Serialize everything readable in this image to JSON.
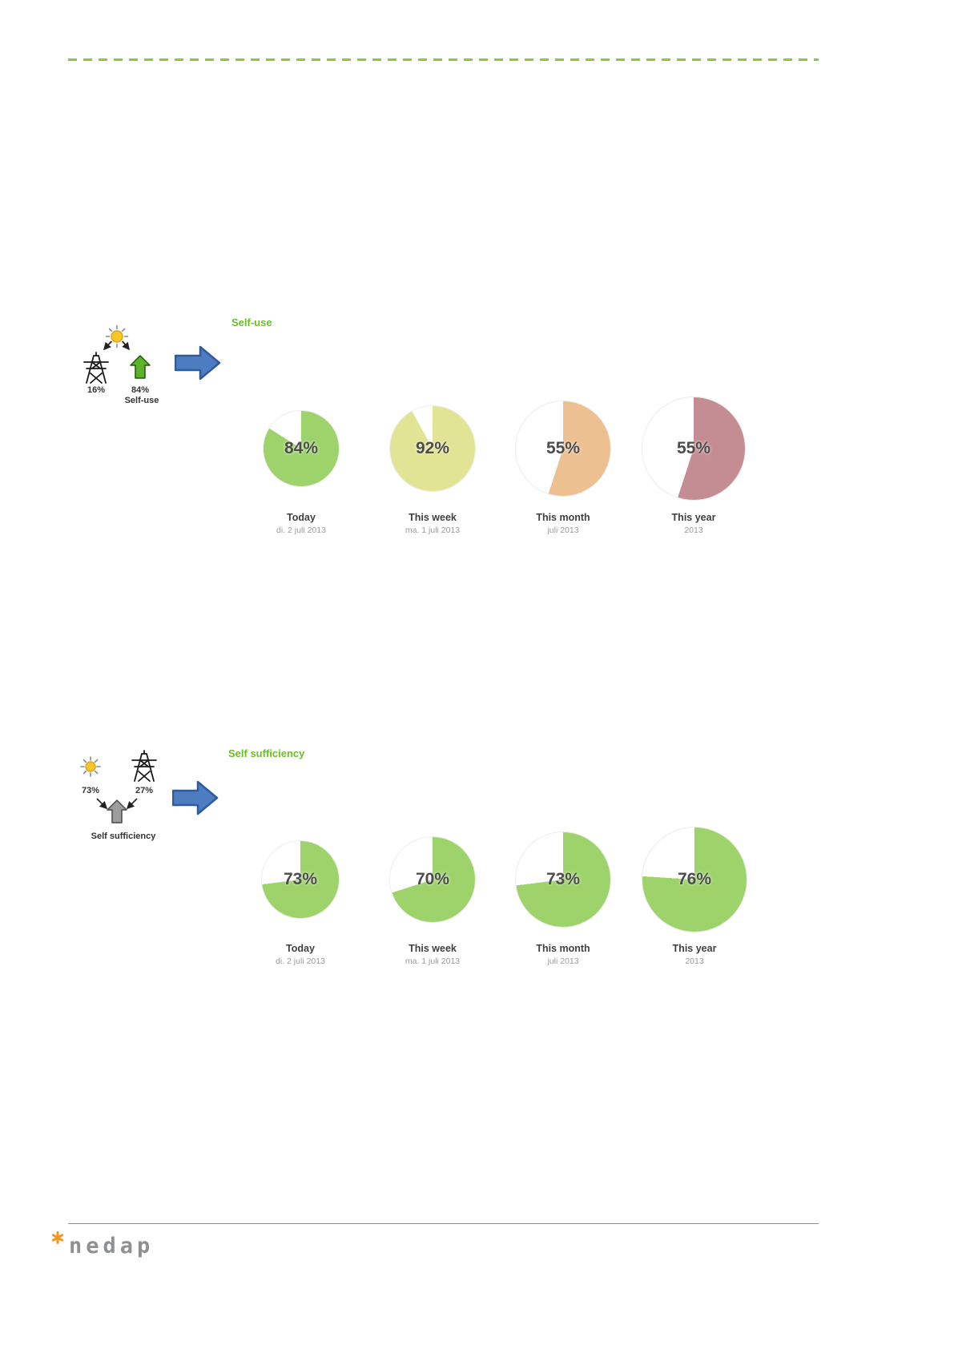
{
  "colors": {
    "accent_green": "#6bbd2a",
    "dash_green": "#8dc63f",
    "arrow_blue": "#4e7cc0",
    "arrow_blue_border": "#2d5b9e",
    "logo_orange": "#f7941d",
    "text_dark": "#4d4d4d",
    "text_muted": "#9b9b9b"
  },
  "sections": [
    {
      "title": "Self-use",
      "diagram": {
        "grid_pct": "16%",
        "home_pct": "84%",
        "caption": "Self-use"
      },
      "charts": [
        {
          "period": "Today",
          "date": "di. 2 juli 2013",
          "pct_label": "84%",
          "value": 84,
          "color": "#9ed36c",
          "size": 94
        },
        {
          "period": "This week",
          "date": "ma. 1 juli 2013",
          "pct_label": "92%",
          "value": 92,
          "color": "#e0e494",
          "size": 106
        },
        {
          "period": "This month",
          "date": "juli 2013",
          "pct_label": "55%",
          "value": 55,
          "color": "#edc091",
          "size": 118
        },
        {
          "period": "This year",
          "date": "2013",
          "pct_label": "55%",
          "value": 55,
          "color": "#c48d93",
          "size": 128
        }
      ]
    },
    {
      "title": "Self sufficiency",
      "diagram": {
        "sun_pct": "73%",
        "grid_pct": "27%",
        "caption": "Self sufficiency"
      },
      "charts": [
        {
          "period": "Today",
          "date": "di. 2 juli 2013",
          "pct_label": "73%",
          "value": 73,
          "color": "#9ed36c",
          "size": 96
        },
        {
          "period": "This week",
          "date": "ma. 1 juli 2013",
          "pct_label": "70%",
          "value": 70,
          "color": "#9ed36c",
          "size": 106
        },
        {
          "period": "This month",
          "date": "juli 2013",
          "pct_label": "73%",
          "value": 73,
          "color": "#9ed36c",
          "size": 118
        },
        {
          "period": "This year",
          "date": "2013",
          "pct_label": "76%",
          "value": 76,
          "color": "#9ed36c",
          "size": 130
        }
      ]
    }
  ],
  "footer": {
    "logo_text": "nedap"
  },
  "chart_data": [
    {
      "type": "pie",
      "title": "Self-use",
      "categories": [
        "Today",
        "This week",
        "This month",
        "This year"
      ],
      "values": [
        84,
        92,
        55,
        55
      ],
      "sub_labels": [
        "di. 2 juli 2013",
        "ma. 1 juli 2013",
        "juli 2013",
        "2013"
      ],
      "colors": [
        "#9ed36c",
        "#e0e494",
        "#edc091",
        "#c48d93"
      ],
      "note": "each pie shows percentage filled clockwise from top, remainder white"
    },
    {
      "type": "pie",
      "title": "Self sufficiency",
      "categories": [
        "Today",
        "This week",
        "This month",
        "This year"
      ],
      "values": [
        73,
        70,
        73,
        76
      ],
      "sub_labels": [
        "di. 2 juli 2013",
        "ma. 1 juli 2013",
        "juli 2013",
        "2013"
      ],
      "colors": [
        "#9ed36c",
        "#9ed36c",
        "#9ed36c",
        "#9ed36c"
      ],
      "note": "each pie shows percentage filled clockwise from top, remainder white"
    }
  ]
}
